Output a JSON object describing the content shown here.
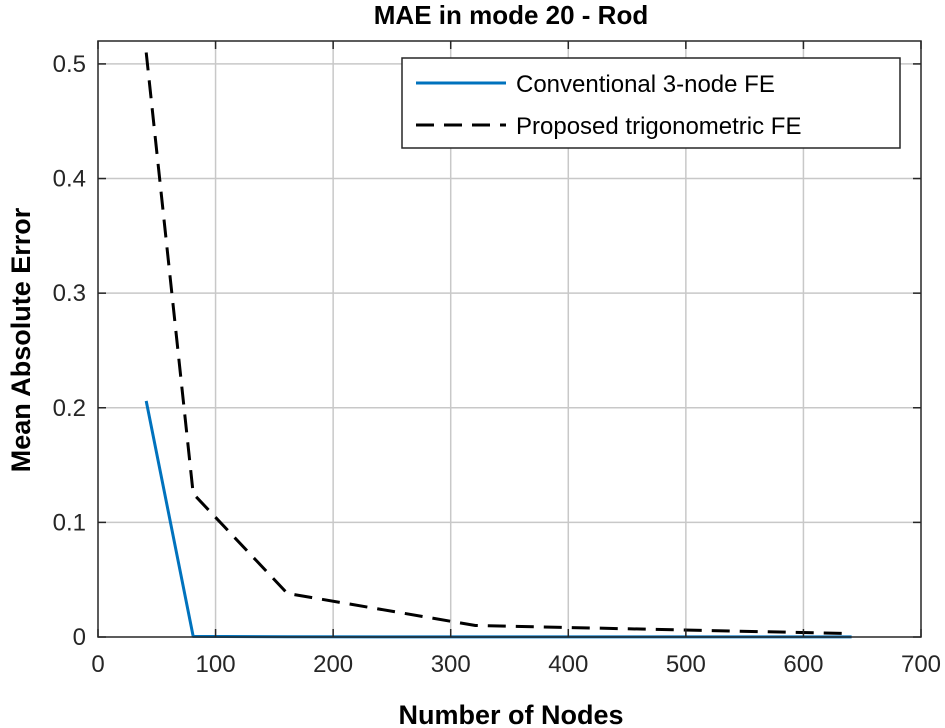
{
  "chart_data": {
    "type": "line",
    "title": "MAE in mode 20 - Rod",
    "xlabel": "Number of Nodes",
    "ylabel": "Mean Absolute Error",
    "xlim": [
      0,
      700
    ],
    "ylim": [
      0,
      0.52
    ],
    "xticks": [
      0,
      100,
      200,
      300,
      400,
      500,
      600,
      700
    ],
    "xtick_labels": [
      "0",
      "100",
      "200",
      "300",
      "400",
      "500",
      "600",
      "700"
    ],
    "yticks": [
      0,
      0.1,
      0.2,
      0.3,
      0.4,
      0.5
    ],
    "ytick_labels": [
      "0",
      "0.1",
      "0.2",
      "0.3",
      "0.4",
      "0.5"
    ],
    "grid": true,
    "legend_position": "top-right",
    "series": [
      {
        "name": "Conventional 3-node FE",
        "color": "#0072bd",
        "style": "solid",
        "x": [
          41,
          81,
          161,
          321,
          641
        ],
        "y": [
          0.206,
          0.0005,
          0.0002,
          0.0001,
          0.0001
        ]
      },
      {
        "name": "Proposed trigonometric FE",
        "color": "#000000",
        "style": "dashed",
        "x": [
          41,
          81,
          161,
          321,
          641
        ],
        "y": [
          0.51,
          0.125,
          0.038,
          0.01,
          0.003
        ]
      }
    ]
  }
}
